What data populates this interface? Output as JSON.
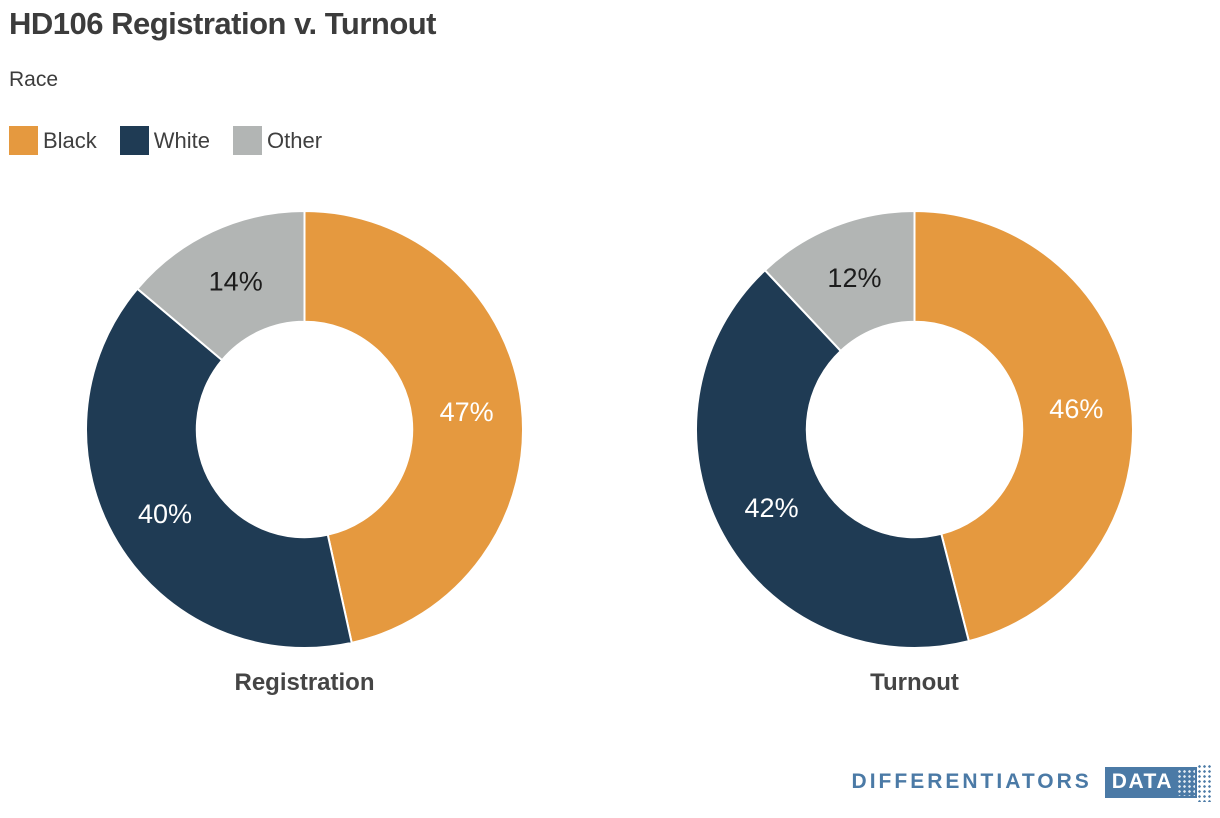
{
  "header": {
    "title": "HD106 Registration v. Turnout",
    "subtitle": "Race"
  },
  "legend": {
    "items": [
      {
        "label": "Black",
        "color": "#e5993f"
      },
      {
        "label": "White",
        "color": "#1f3b54"
      },
      {
        "label": "Other",
        "color": "#b2b5b4"
      }
    ]
  },
  "chart_data": [
    {
      "type": "pie",
      "donut": true,
      "title": "Registration",
      "categories": [
        "Black",
        "White",
        "Other"
      ],
      "values": [
        47,
        40,
        14
      ],
      "unit": "%",
      "colors": [
        "#e5993f",
        "#1f3b54",
        "#b2b5b4"
      ],
      "label_colors": [
        "#ffffff",
        "#ffffff",
        "#1c1c1c"
      ],
      "start_angle_deg": 0,
      "direction": "clockwise",
      "inner_radius_ratio": 0.493,
      "legend_position": "top-left"
    },
    {
      "type": "pie",
      "donut": true,
      "title": "Turnout",
      "categories": [
        "Black",
        "White",
        "Other"
      ],
      "values": [
        46,
        42,
        12
      ],
      "unit": "%",
      "colors": [
        "#e5993f",
        "#1f3b54",
        "#b2b5b4"
      ],
      "label_colors": [
        "#ffffff",
        "#ffffff",
        "#1c1c1c"
      ],
      "start_angle_deg": 0,
      "direction": "clockwise",
      "inner_radius_ratio": 0.493,
      "legend_position": "top-left"
    }
  ],
  "footer": {
    "brand_text": "DIFFERENTIATORS",
    "brand_badge": "DATA",
    "brand_color": "#4b7aa6"
  }
}
